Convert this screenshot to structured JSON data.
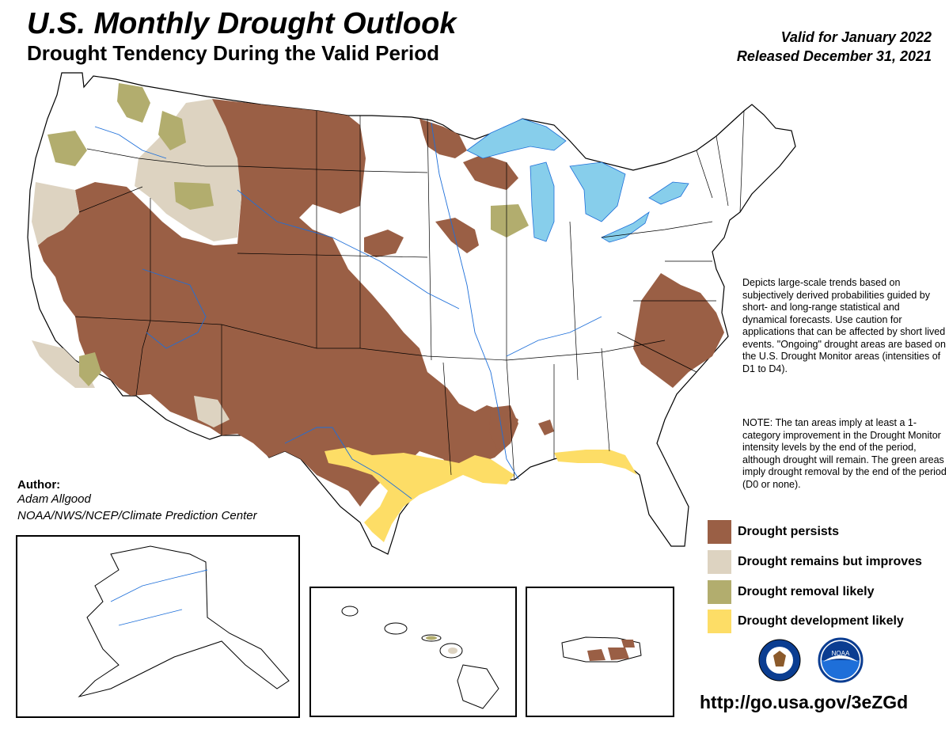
{
  "header": {
    "title": "U.S. Monthly Drought Outlook",
    "subtitle": "Drought Tendency During the Valid Period",
    "valid": "Valid for January 2022",
    "released": "Released December 31, 2021"
  },
  "description": {
    "paragraph1": "Depicts large-scale trends based on subjectively derived probabilities guided by short- and long-range statistical and dynamical forecasts. Use caution for applications that can be affected by short lived events. \"Ongoing\" drought areas are based on the U.S. Drought Monitor areas (intensities of D1 to D4).",
    "paragraph2": "NOTE: The tan areas imply at least a 1-category improvement in the Drought Monitor intensity levels by the end of the period, although drought will remain. The green areas imply drought removal by the end of the period (D0 or none)."
  },
  "author": {
    "label": "Author:",
    "name": "Adam Allgood",
    "org": "NOAA/NWS/NCEP/Climate Prediction Center"
  },
  "legend": [
    {
      "label": "Drought persists",
      "color": "#9a5f45"
    },
    {
      "label": "Drought remains but improves",
      "color": "#ddd3c1"
    },
    {
      "label": "Drought removal likely",
      "color": "#b2ad6e"
    },
    {
      "label": "Drought development likely",
      "color": "#fddd66"
    }
  ],
  "colors": {
    "water": "#87ceeb",
    "rivers": "#1e6fd9",
    "borders": "#000000"
  },
  "logos": [
    {
      "name": "doc-seal",
      "icon": "commerce-eagle-seal"
    },
    {
      "name": "noaa-logo",
      "icon": "noaa-gull-logo",
      "text": "NOAA"
    }
  ],
  "url": "http://go.usa.gov/3eZGd"
}
